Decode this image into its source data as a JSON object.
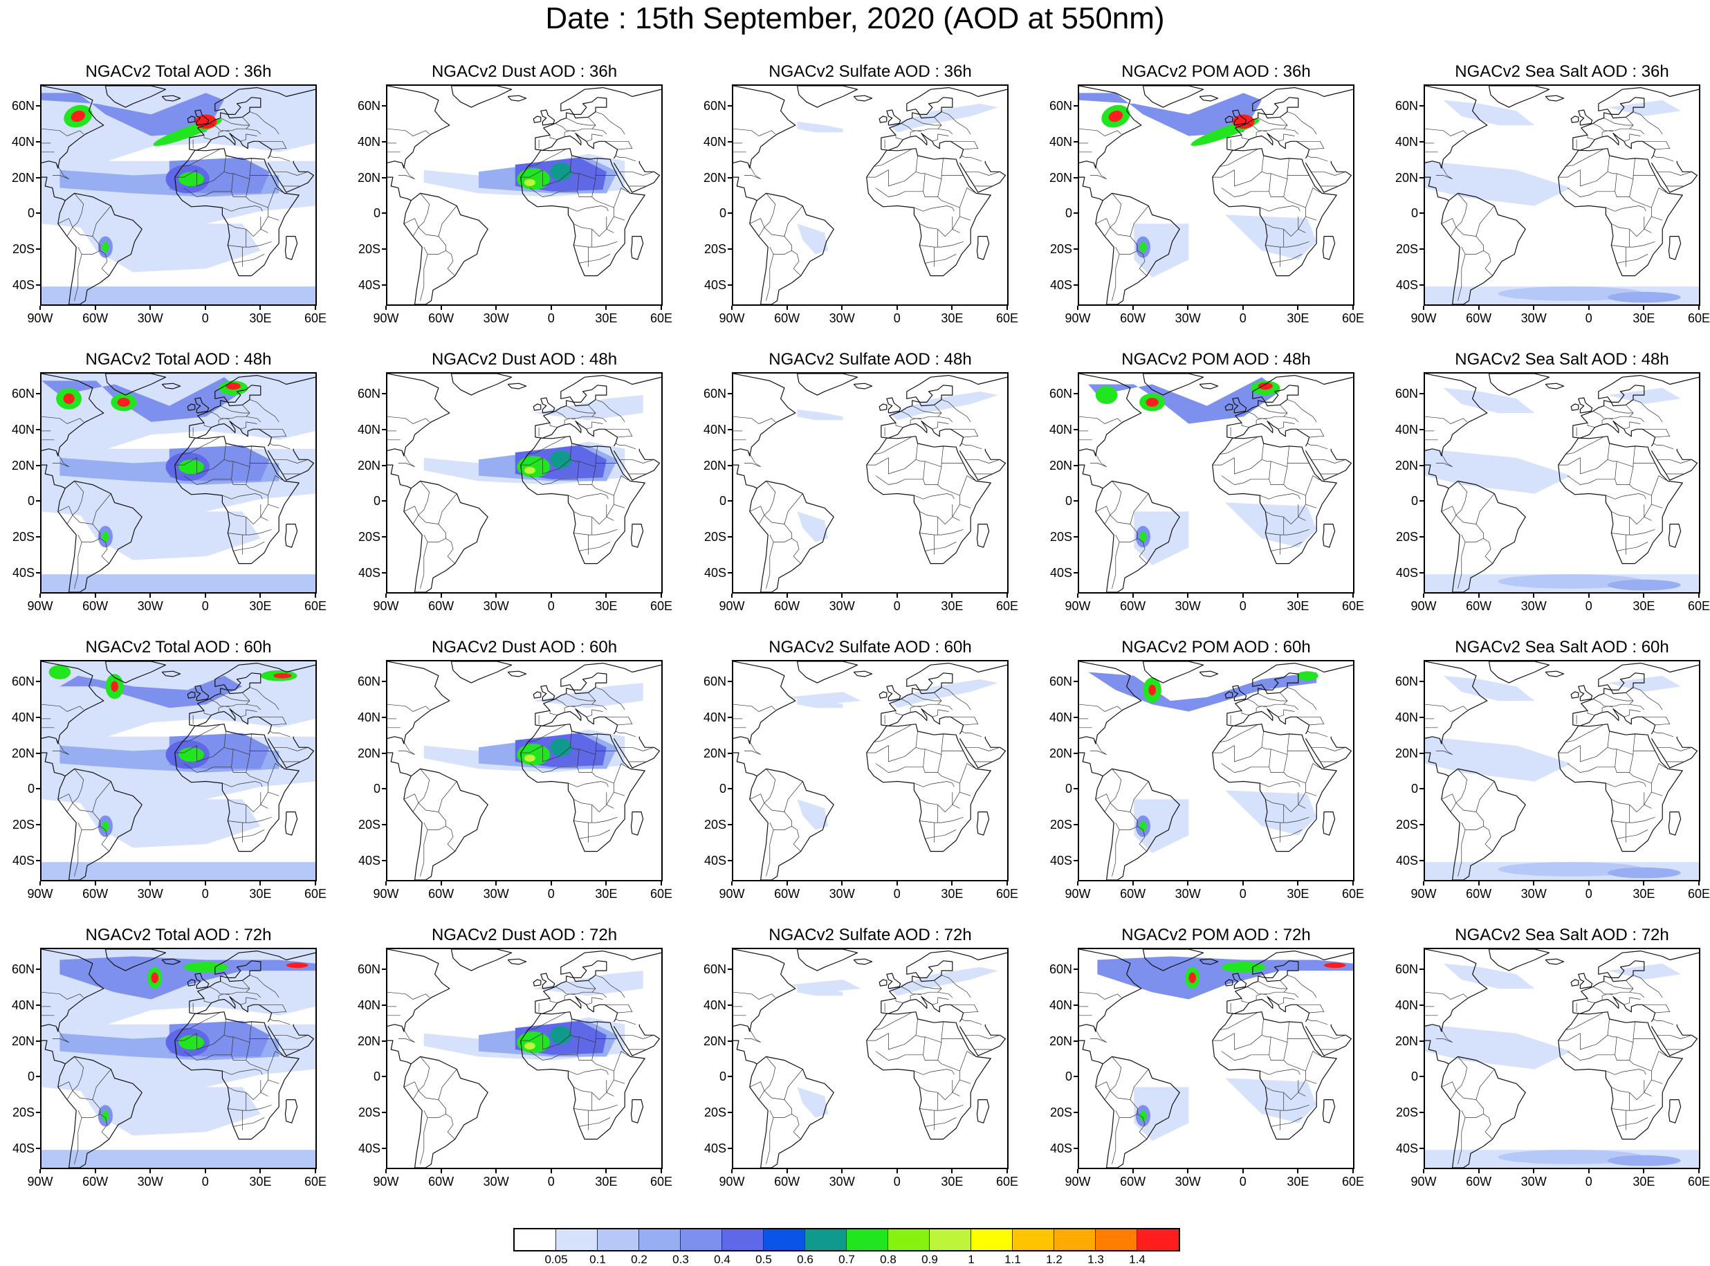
{
  "title": "Date : 15th September, 2020 (AOD at 550nm)",
  "lat_labels": [
    "60N",
    "40N",
    "20N",
    "0",
    "20S",
    "40S"
  ],
  "lon_labels": [
    "90W",
    "60W",
    "30W",
    "0",
    "30E",
    "60E"
  ],
  "panels": [
    {
      "title": "NGACv2 Total AOD : 36h",
      "product": "total"
    },
    {
      "title": "NGACv2 Dust AOD : 36h",
      "product": "dust"
    },
    {
      "title": "NGACv2 Sulfate AOD : 36h",
      "product": "sulfate"
    },
    {
      "title": "NGACv2 POM AOD : 36h",
      "product": "pom"
    },
    {
      "title": "NGACv2 Sea Salt AOD : 36h",
      "product": "seasalt"
    },
    {
      "title": "NGACv2 Total AOD : 48h",
      "product": "total"
    },
    {
      "title": "NGACv2 Dust AOD : 48h",
      "product": "dust"
    },
    {
      "title": "NGACv2 Sulfate AOD : 48h",
      "product": "sulfate"
    },
    {
      "title": "NGACv2 POM AOD : 48h",
      "product": "pom"
    },
    {
      "title": "NGACv2 Sea Salt AOD : 48h",
      "product": "seasalt"
    },
    {
      "title": "NGACv2 Total AOD : 60h",
      "product": "total"
    },
    {
      "title": "NGACv2 Dust AOD : 60h",
      "product": "dust"
    },
    {
      "title": "NGACv2 Sulfate AOD : 60h",
      "product": "sulfate"
    },
    {
      "title": "NGACv2 POM AOD : 60h",
      "product": "pom"
    },
    {
      "title": "NGACv2 Sea Salt AOD : 60h",
      "product": "seasalt"
    },
    {
      "title": "NGACv2 Total AOD : 72h",
      "product": "total"
    },
    {
      "title": "NGACv2 Dust AOD : 72h",
      "product": "dust"
    },
    {
      "title": "NGACv2 Sulfate AOD : 72h",
      "product": "sulfate"
    },
    {
      "title": "NGACv2 POM AOD : 72h",
      "product": "pom"
    },
    {
      "title": "NGACv2 Sea Salt  AOD : 72h",
      "product": "seasalt"
    }
  ],
  "colorbar": {
    "colors": [
      "#ffffff",
      "#d6e1fb",
      "#b6c8f7",
      "#97aef3",
      "#7d90ee",
      "#5f68e6",
      "#0a55e8",
      "#109a8e",
      "#21e61f",
      "#86f20e",
      "#bef53a",
      "#ffff00",
      "#ffc400",
      "#ffaa00",
      "#ff7d00",
      "#ff1d1d"
    ],
    "labels": [
      "0.05",
      "0.1",
      "0.2",
      "0.3",
      "0.4",
      "0.5",
      "0.6",
      "0.7",
      "0.8",
      "0.9",
      "1",
      "1.1",
      "1.2",
      "1.3",
      "1.4"
    ]
  }
}
